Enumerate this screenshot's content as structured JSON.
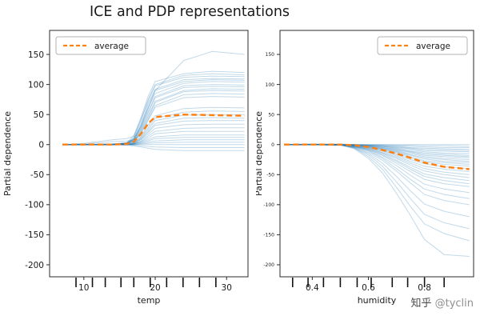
{
  "title": "ICE and PDP representations",
  "watermark": {
    "brand": "知乎",
    "handle": "@tyclin"
  },
  "colors": {
    "ice": "#1f77b4",
    "average": "#ff7f0e",
    "spine": "#2b2b2b",
    "text": "#1a1a1a",
    "legend_border": "#b3b3b3",
    "rug": "#111111"
  },
  "chart_data": [
    {
      "type": "line",
      "name": "ice-pdp-temp",
      "xlabel": "temp",
      "ylabel": "Partial dependence",
      "xlim": [
        5.2,
        33.0
      ],
      "ylim": [
        -220,
        190
      ],
      "xticks": [
        10,
        20,
        30
      ],
      "xtick_labels": [
        "10",
        "20",
        "30"
      ],
      "yticks": [
        150,
        100,
        50,
        0,
        -50,
        -100,
        -150,
        -200
      ],
      "legend": {
        "label": "average",
        "position": "top-left"
      },
      "deciles": [
        8.9,
        11.2,
        13.0,
        15.2,
        17.0,
        19.3,
        21.6,
        23.9,
        26.2,
        28.5
      ],
      "x": [
        7,
        10,
        14,
        16,
        17,
        18,
        19,
        20,
        24,
        28,
        32.5
      ],
      "ice_lines": [
        [
          0,
          0,
          0,
          2,
          10,
          30,
          60,
          90,
          140,
          155,
          150
        ],
        [
          0,
          0,
          1,
          3,
          15,
          45,
          80,
          105,
          118,
          122,
          120
        ],
        [
          0,
          0,
          0,
          2,
          12,
          40,
          75,
          100,
          115,
          118,
          116
        ],
        [
          0,
          2,
          8,
          10,
          14,
          42,
          72,
          98,
          112,
          114,
          113
        ],
        [
          0,
          0,
          0,
          3,
          10,
          35,
          68,
          92,
          108,
          110,
          109
        ],
        [
          0,
          0,
          1,
          2,
          9,
          32,
          64,
          90,
          105,
          108,
          107
        ],
        [
          0,
          0,
          0,
          2,
          8,
          30,
          60,
          85,
          102,
          105,
          104
        ],
        [
          0,
          0,
          0,
          1,
          7,
          28,
          55,
          80,
          98,
          100,
          99
        ],
        [
          0,
          0,
          1,
          3,
          8,
          26,
          52,
          78,
          95,
          97,
          96
        ],
        [
          0,
          0,
          0,
          2,
          6,
          24,
          48,
          72,
          90,
          93,
          92
        ],
        [
          0,
          0,
          0,
          1,
          5,
          22,
          45,
          70,
          88,
          90,
          89
        ],
        [
          0,
          0,
          0,
          2,
          6,
          20,
          42,
          65,
          83,
          85,
          84
        ],
        [
          0,
          0,
          1,
          2,
          5,
          18,
          40,
          62,
          78,
          80,
          79
        ],
        [
          0,
          1,
          5,
          6,
          8,
          15,
          32,
          48,
          60,
          62,
          61
        ],
        [
          0,
          0,
          0,
          1,
          3,
          13,
          28,
          44,
          54,
          56,
          55
        ],
        [
          0,
          0,
          0,
          1,
          3,
          12,
          25,
          40,
          49,
          50,
          50
        ],
        [
          0,
          0,
          0,
          1,
          2,
          10,
          22,
          35,
          44,
          45,
          44
        ],
        [
          0,
          0,
          0,
          0,
          2,
          9,
          20,
          32,
          39,
          40,
          40
        ],
        [
          0,
          0,
          0,
          1,
          2,
          8,
          17,
          27,
          33,
          34,
          34
        ],
        [
          0,
          0,
          0,
          0,
          1,
          6,
          14,
          22,
          27,
          28,
          28
        ],
        [
          0,
          0,
          0,
          0,
          1,
          5,
          11,
          18,
          22,
          22,
          22
        ],
        [
          0,
          0,
          0,
          0,
          1,
          4,
          8,
          13,
          16,
          16,
          16
        ],
        [
          0,
          0,
          0,
          0,
          1,
          3,
          6,
          10,
          12,
          12,
          12
        ],
        [
          0,
          0,
          0,
          0,
          0,
          2,
          4,
          6,
          8,
          8,
          8
        ],
        [
          0,
          0,
          0,
          0,
          0,
          1,
          2,
          3,
          4,
          4,
          4
        ],
        [
          0,
          0,
          0,
          0,
          0,
          0,
          0,
          0,
          0,
          0,
          0
        ],
        [
          0,
          0,
          0,
          0,
          -1,
          -2,
          -3,
          -4,
          -5,
          -5,
          -5
        ],
        [
          0,
          0,
          0,
          -1,
          -2,
          -4,
          -6,
          -8,
          -10,
          -10,
          -10
        ]
      ],
      "average": [
        0,
        0,
        0,
        1,
        5,
        18,
        35,
        46,
        50,
        49,
        48
      ]
    },
    {
      "type": "line",
      "name": "ice-pdp-humidity",
      "xlabel": "humidity",
      "ylabel": "Partial dependence",
      "xlim": [
        0.285,
        0.975
      ],
      "ylim": [
        -220,
        190
      ],
      "xticks": [
        0.4,
        0.6,
        0.8
      ],
      "xtick_labels": [
        "0.4",
        "0.6",
        "0.8"
      ],
      "yticks": [
        150,
        100,
        50,
        0,
        -50,
        -100,
        -150,
        -200
      ],
      "legend": {
        "label": "average",
        "position": "top-right"
      },
      "deciles": [
        0.33,
        0.385,
        0.44,
        0.5,
        0.56,
        0.61,
        0.685,
        0.74,
        0.8,
        0.87
      ],
      "x": [
        0.3,
        0.4,
        0.5,
        0.55,
        0.6,
        0.65,
        0.7,
        0.75,
        0.8,
        0.87,
        0.96
      ],
      "ice_lines": [
        [
          0,
          0,
          0,
          0,
          0,
          0,
          0,
          0,
          0,
          0,
          0
        ],
        [
          0,
          0,
          0,
          0,
          0,
          0,
          -1,
          -1,
          -2,
          -2,
          -3
        ],
        [
          0,
          0,
          0,
          0,
          -1,
          -1,
          -2,
          -3,
          -4,
          -5,
          -5
        ],
        [
          0,
          0,
          0,
          -1,
          -1,
          -2,
          -3,
          -5,
          -6,
          -7,
          -8
        ],
        [
          0,
          1,
          1,
          0,
          -1,
          -2,
          -4,
          -6,
          -8,
          -9,
          -10
        ],
        [
          0,
          0,
          0,
          0,
          -1,
          -3,
          -5,
          -7,
          -10,
          -11,
          -12
        ],
        [
          0,
          0,
          -1,
          -1,
          -2,
          -3,
          -6,
          -9,
          -12,
          -14,
          -15
        ],
        [
          0,
          0,
          0,
          0,
          -2,
          -4,
          -7,
          -11,
          -14,
          -16,
          -18
        ],
        [
          0,
          1,
          0,
          -1,
          -2,
          -5,
          -8,
          -12,
          -16,
          -18,
          -20
        ],
        [
          0,
          0,
          0,
          -1,
          -3,
          -5,
          -9,
          -13,
          -18,
          -20,
          -22
        ],
        [
          0,
          0,
          -1,
          -1,
          -3,
          -6,
          -10,
          -15,
          -20,
          -23,
          -25
        ],
        [
          0,
          0,
          0,
          -1,
          -3,
          -7,
          -11,
          -17,
          -22,
          -25,
          -28
        ],
        [
          0,
          0,
          0,
          -2,
          -4,
          -7,
          -12,
          -18,
          -24,
          -28,
          -30
        ],
        [
          0,
          0,
          -1,
          -2,
          -4,
          -8,
          -13,
          -20,
          -27,
          -30,
          -33
        ],
        [
          0,
          0,
          0,
          -2,
          -5,
          -9,
          -15,
          -22,
          -29,
          -33,
          -36
        ],
        [
          0,
          0,
          0,
          -2,
          -5,
          -10,
          -17,
          -25,
          -32,
          -37,
          -40
        ],
        [
          0,
          0,
          -1,
          -2,
          -6,
          -11,
          -19,
          -28,
          -36,
          -41,
          -45
        ],
        [
          0,
          0,
          0,
          -3,
          -6,
          -13,
          -21,
          -31,
          -40,
          -46,
          -50
        ],
        [
          0,
          0,
          0,
          -3,
          -7,
          -14,
          -23,
          -34,
          -44,
          -50,
          -55
        ],
        [
          0,
          0,
          -1,
          -3,
          -8,
          -15,
          -26,
          -38,
          -49,
          -55,
          -60
        ],
        [
          0,
          0,
          0,
          -3,
          -8,
          -17,
          -28,
          -41,
          -53,
          -60,
          -65
        ],
        [
          0,
          0,
          0,
          -4,
          -9,
          -18,
          -31,
          -45,
          -58,
          -65,
          -70
        ],
        [
          0,
          0,
          -1,
          -4,
          -10,
          -21,
          -35,
          -51,
          -66,
          -74,
          -80
        ],
        [
          0,
          0,
          0,
          -4,
          -11,
          -23,
          -40,
          -58,
          -74,
          -83,
          -90
        ],
        [
          0,
          0,
          0,
          -5,
          -13,
          -26,
          -44,
          -64,
          -83,
          -93,
          -100
        ],
        [
          0,
          0,
          -1,
          -5,
          -15,
          -31,
          -53,
          -77,
          -99,
          -111,
          -120
        ],
        [
          0,
          0,
          0,
          -6,
          -17,
          -36,
          -62,
          -90,
          -116,
          -130,
          -140
        ],
        [
          0,
          0,
          0,
          -6,
          -20,
          -41,
          -71,
          -103,
          -132,
          -148,
          -160
        ],
        [
          0,
          0,
          -1,
          -7,
          -23,
          -47,
          -81,
          -118,
          -158,
          -183,
          -186
        ]
      ],
      "average": [
        0,
        0,
        0,
        -1,
        -4,
        -9,
        -15,
        -22,
        -30,
        -37,
        -41
      ]
    }
  ]
}
